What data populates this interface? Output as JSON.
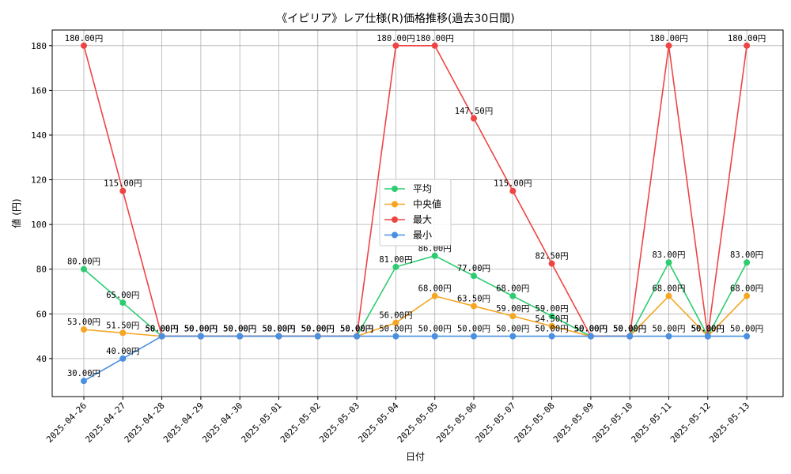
{
  "chart_data": {
    "type": "line",
    "title": "《イピリア》レア仕様(R)価格推移(過去30日間)",
    "xlabel": "日付",
    "ylabel": "値 (円)",
    "ylim": [
      23,
      187
    ],
    "yticks": [
      40,
      60,
      80,
      100,
      120,
      140,
      160,
      180
    ],
    "grid": true,
    "legend_position": "center",
    "label_suffix": "円",
    "categories": [
      "2025-04-26",
      "2025-04-27",
      "2025-04-28",
      "2025-04-29",
      "2025-04-30",
      "2025-05-01",
      "2025-05-02",
      "2025-05-03",
      "2025-05-04",
      "2025-05-05",
      "2025-05-06",
      "2025-05-07",
      "2025-05-08",
      "2025-05-09",
      "2025-05-10",
      "2025-05-11",
      "2025-05-12",
      "2025-05-13"
    ],
    "series": [
      {
        "name": "平均",
        "color": "#2ecc71",
        "values": [
          80,
          65,
          50,
          50,
          50,
          50,
          50,
          50,
          81,
          86,
          77,
          68,
          59,
          50,
          50,
          83,
          50,
          83
        ]
      },
      {
        "name": "中央値",
        "color": "#f5a623",
        "values": [
          53,
          51.5,
          50,
          50,
          50,
          50,
          50,
          50,
          56,
          68,
          63.5,
          59,
          54.5,
          50,
          50,
          68,
          50,
          68
        ]
      },
      {
        "name": "最大",
        "color": "#ef4444",
        "values": [
          180,
          115,
          50,
          50,
          50,
          50,
          50,
          50,
          180,
          180,
          147.5,
          115,
          82.5,
          50,
          50,
          180,
          50,
          180
        ]
      },
      {
        "name": "最小",
        "color": "#4a90e2",
        "values": [
          30,
          40,
          50,
          50,
          50,
          50,
          50,
          50,
          50,
          50,
          50,
          50,
          50,
          50,
          50,
          50,
          50,
          50
        ]
      }
    ]
  }
}
